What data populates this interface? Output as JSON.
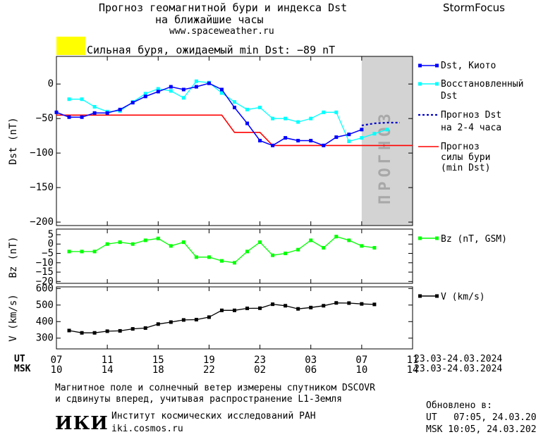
{
  "header": {
    "title_line1": "Прогноз геомагнитной бури и индекса Dst",
    "title_line2": "на ближайшие часы",
    "site_url": "www.spaceweather.ru",
    "brand": "StormFocus"
  },
  "alert": {
    "level_color": "#ffff00",
    "text": "Сильная буря, ожидаемый min Dst: −89 nT"
  },
  "forecast_band_label": "ПРОГНОЗ",
  "colors": {
    "dst": "#0000ff",
    "reconstructed": "#00ffff",
    "forecast": "#0000cc",
    "storm": "#ff0000",
    "bz": "#00ff00",
    "v": "#000000",
    "forecast_band": "#d3d3d3"
  },
  "legend": {
    "dst": "Dst, Киото",
    "reconstructed_1": "Восстановленный",
    "reconstructed_2": "Dst",
    "forecast_1": "Прогноз Dst",
    "forecast_2": "на 2-4 часа",
    "storm_1": "Прогноз",
    "storm_2": "силы бури",
    "storm_3": "(min Dst)",
    "bz": "Bz (nT, GSM)",
    "v": "V (km/s)"
  },
  "chart_data": [
    {
      "type": "line",
      "ylabel": "Dst (nT)",
      "ylim": [
        -205,
        40
      ],
      "xlim": [
        7,
        35
      ],
      "yticks": [
        0,
        -50,
        -100,
        -150,
        -200
      ],
      "series": [
        {
          "name": "Dst, Киото",
          "x": [
            7,
            8,
            9,
            10,
            11,
            12,
            13,
            14,
            15,
            16,
            17,
            18,
            19,
            20,
            21,
            22,
            23,
            24,
            25,
            26,
            27,
            28,
            29,
            30,
            31
          ],
          "y": [
            -41,
            -48,
            -48,
            -42,
            -42,
            -37,
            -27,
            -18,
            -11,
            -4,
            -8,
            -4,
            1,
            -8,
            -34,
            -57,
            -82,
            -89,
            -78,
            -82,
            -82,
            -89,
            -77,
            -73,
            -66
          ]
        },
        {
          "name": "Восстановленный Dst",
          "x": [
            8,
            9,
            10,
            11,
            12,
            13,
            14,
            15,
            16,
            17,
            18,
            19,
            20,
            21,
            22,
            23,
            24,
            25,
            26,
            27,
            28,
            29,
            30,
            31,
            32,
            33
          ],
          "y": [
            -22,
            -22,
            -33,
            -40,
            -39,
            -26,
            -14,
            -7,
            -10,
            -20,
            4,
            2,
            -13,
            -26,
            -37,
            -34,
            -50,
            -50,
            -55,
            -50,
            -41,
            -41,
            -83,
            -78,
            -72,
            -66
          ]
        },
        {
          "name": "Прогноз Dst на 2-4 часа",
          "x": [
            31,
            32,
            33,
            34
          ],
          "y": [
            -60,
            -57,
            -56,
            -56
          ]
        },
        {
          "name": "Прогноз силы бури (min Dst)",
          "x": [
            7,
            8,
            9,
            10,
            11,
            12,
            13,
            14,
            15,
            16,
            17,
            18,
            19,
            20,
            21,
            22,
            23,
            24,
            25,
            26,
            27,
            28,
            29,
            30,
            31,
            32,
            33,
            34,
            35
          ],
          "y": [
            -45,
            -45,
            -45,
            -45,
            -45,
            -45,
            -45,
            -45,
            -45,
            -45,
            -45,
            -45,
            -45,
            -45,
            -70,
            -70,
            -70,
            -89,
            -89,
            -89,
            -89,
            -89,
            -89,
            -89,
            -89,
            -89,
            -89,
            -89,
            -89
          ]
        }
      ],
      "forecast_region_x": [
        31,
        35
      ]
    },
    {
      "type": "line",
      "ylabel": "Bz (nT)",
      "ylim": [
        -21,
        8
      ],
      "xlim": [
        7,
        35
      ],
      "yticks": [
        5,
        0,
        -5,
        -10,
        -15,
        -20
      ],
      "series": [
        {
          "name": "Bz (nT, GSM)",
          "x": [
            8,
            9,
            10,
            11,
            12,
            13,
            14,
            15,
            16,
            17,
            18,
            19,
            20,
            21,
            22,
            23,
            24,
            25,
            26,
            27,
            28,
            29,
            30,
            31,
            32
          ],
          "y": [
            -4,
            -4,
            -4,
            0,
            1,
            0,
            2,
            3,
            -1,
            1,
            -7,
            -7,
            -9,
            -10,
            -4,
            1,
            -6,
            -5,
            -3,
            2,
            -2,
            4,
            2,
            -1,
            -2
          ]
        }
      ]
    },
    {
      "type": "line",
      "ylabel": "V (km/s)",
      "ylim": [
        235,
        610
      ],
      "xlim": [
        7,
        35
      ],
      "yticks": [
        600,
        500,
        400,
        300
      ],
      "series": [
        {
          "name": "V (km/s)",
          "x": [
            8,
            9,
            10,
            11,
            12,
            13,
            14,
            15,
            16,
            17,
            18,
            19,
            20,
            21,
            22,
            23,
            24,
            25,
            26,
            27,
            28,
            29,
            30,
            31,
            32
          ],
          "y": [
            346,
            332,
            332,
            342,
            344,
            356,
            361,
            385,
            397,
            410,
            412,
            427,
            468,
            468,
            480,
            481,
            505,
            496,
            477,
            485,
            496,
            513,
            512,
            507,
            504
          ]
        }
      ]
    }
  ],
  "x_axis": {
    "ut_label": "UT",
    "msk_label": "MSK",
    "ut_ticks": [
      "07",
      "11",
      "15",
      "19",
      "23",
      "03",
      "07",
      "11"
    ],
    "msk_ticks": [
      "10",
      "14",
      "18",
      "22",
      "02",
      "06",
      "10",
      "14"
    ],
    "tick_hours": [
      7,
      11,
      15,
      19,
      23,
      27,
      31,
      35
    ],
    "date_range_ut": "23.03-24.03.2024",
    "date_range_msk": "23.03-24.03.2024"
  },
  "footer": {
    "note_line1": "Магнитное поле и солнечный ветер измерены спутником DSCOVR",
    "note_line2": "и сдвинуты вперед, учитывая распространение L1-Земля",
    "logo_text": "ИКИ",
    "institute": "Институт космических исследований РАН",
    "institute_url": "iki.cosmos.ru",
    "updated_label": "Обновлено в:",
    "updated_ut": "UT   07:05, 24.03.2024",
    "updated_msk": "MSK 10:05, 24.03.2024"
  }
}
